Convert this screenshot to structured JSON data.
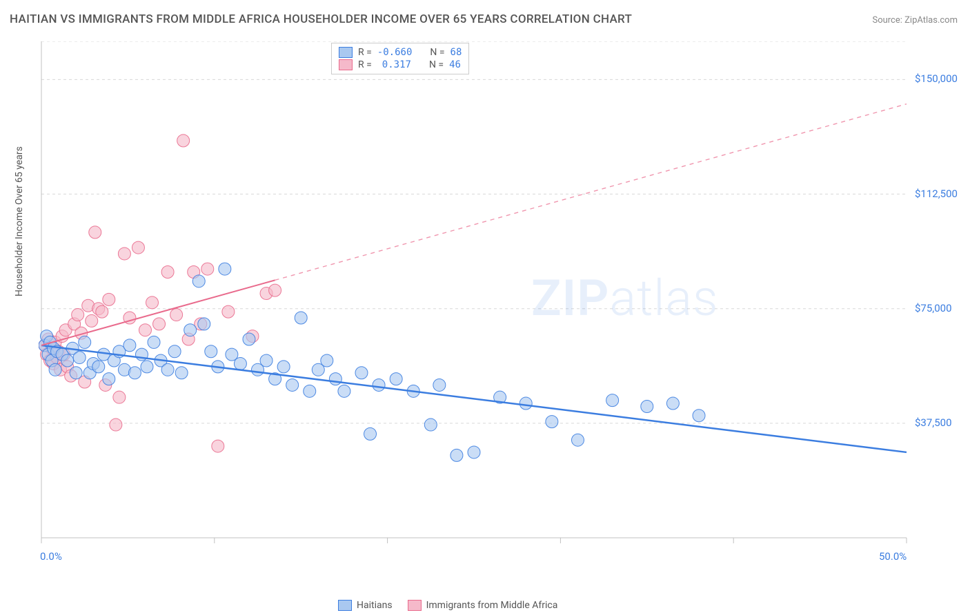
{
  "title": "HAITIAN VS IMMIGRANTS FROM MIDDLE AFRICA HOUSEHOLDER INCOME OVER 65 YEARS CORRELATION CHART",
  "source": "Source: ZipAtlas.com",
  "watermark_zip": "ZIP",
  "watermark_atlas": "atlas",
  "chart": {
    "type": "scatter",
    "background_color": "#ffffff",
    "grid_color": "#d8d8d8",
    "axis_color": "#c0c0c0",
    "y_label": "Householder Income Over 65 years",
    "label_fontsize": 14,
    "label_color": "#555555",
    "tick_color": "#3b7de0",
    "tick_fontsize": 15,
    "xlim": [
      0,
      50
    ],
    "ylim": [
      0,
      162500
    ],
    "x_ticks": [
      0,
      10,
      20,
      30,
      40,
      50
    ],
    "x_tick_labels": [
      "0.0%",
      "",
      "",
      "",
      "",
      "50.0%"
    ],
    "y_ticks": [
      37500,
      75000,
      112500,
      150000
    ],
    "y_tick_labels": [
      "$37,500",
      "$75,000",
      "$112,500",
      "$150,000"
    ],
    "series": [
      {
        "name": "Haitians",
        "color_fill": "#a9c8f0",
        "color_stroke": "#3b7de0",
        "marker_size": 9,
        "marker_opacity": 0.62,
        "trend": {
          "x1": 0,
          "y1": 63000,
          "x2": 50,
          "y2": 28000,
          "solid_until_x": 50,
          "stroke": "#3b7de0",
          "stroke_width": 2.5
        },
        "R": "-0.660",
        "N": "68",
        "points": [
          [
            0.2,
            63000
          ],
          [
            0.3,
            66000
          ],
          [
            0.4,
            60000
          ],
          [
            0.5,
            64000
          ],
          [
            0.6,
            58000
          ],
          [
            0.7,
            62000
          ],
          [
            0.8,
            55000
          ],
          [
            0.9,
            61000
          ],
          [
            1.2,
            60000
          ],
          [
            1.5,
            58000
          ],
          [
            1.8,
            62000
          ],
          [
            2.0,
            54000
          ],
          [
            2.2,
            59000
          ],
          [
            2.5,
            64000
          ],
          [
            2.8,
            54000
          ],
          [
            3.0,
            57000
          ],
          [
            3.3,
            56000
          ],
          [
            3.6,
            60000
          ],
          [
            3.9,
            52000
          ],
          [
            4.2,
            58000
          ],
          [
            4.5,
            61000
          ],
          [
            4.8,
            55000
          ],
          [
            5.1,
            63000
          ],
          [
            5.4,
            54000
          ],
          [
            5.8,
            60000
          ],
          [
            6.1,
            56000
          ],
          [
            6.5,
            64000
          ],
          [
            6.9,
            58000
          ],
          [
            7.3,
            55000
          ],
          [
            7.7,
            61000
          ],
          [
            8.1,
            54000
          ],
          [
            8.6,
            68000
          ],
          [
            9.1,
            84000
          ],
          [
            9.4,
            70000
          ],
          [
            9.8,
            61000
          ],
          [
            10.2,
            56000
          ],
          [
            10.6,
            88000
          ],
          [
            11.0,
            60000
          ],
          [
            11.5,
            57000
          ],
          [
            12.0,
            65000
          ],
          [
            12.5,
            55000
          ],
          [
            13.0,
            58000
          ],
          [
            13.5,
            52000
          ],
          [
            14.0,
            56000
          ],
          [
            14.5,
            50000
          ],
          [
            15.0,
            72000
          ],
          [
            15.5,
            48000
          ],
          [
            16.0,
            55000
          ],
          [
            16.5,
            58000
          ],
          [
            17.0,
            52000
          ],
          [
            17.5,
            48000
          ],
          [
            18.5,
            54000
          ],
          [
            19.0,
            34000
          ],
          [
            19.5,
            50000
          ],
          [
            20.5,
            52000
          ],
          [
            21.5,
            48000
          ],
          [
            22.5,
            37000
          ],
          [
            23.0,
            50000
          ],
          [
            24.0,
            27000
          ],
          [
            25.0,
            28000
          ],
          [
            26.5,
            46000
          ],
          [
            28.0,
            44000
          ],
          [
            29.5,
            38000
          ],
          [
            31.0,
            32000
          ],
          [
            33.0,
            45000
          ],
          [
            35.0,
            43000
          ],
          [
            36.5,
            44000
          ],
          [
            38.0,
            40000
          ]
        ]
      },
      {
        "name": "Immigrants from Middle Africa",
        "color_fill": "#f5b9ca",
        "color_stroke": "#e96a8c",
        "marker_size": 9,
        "marker_opacity": 0.62,
        "trend": {
          "x1": 0,
          "y1": 63000,
          "x2": 50,
          "y2": 142000,
          "solid_until_x": 13.5,
          "stroke": "#e96a8c",
          "stroke_width": 2
        },
        "R": "0.317",
        "N": "46",
        "points": [
          [
            0.2,
            63000
          ],
          [
            0.3,
            60000
          ],
          [
            0.4,
            65000
          ],
          [
            0.5,
            58000
          ],
          [
            0.6,
            62000
          ],
          [
            0.7,
            57000
          ],
          [
            0.8,
            64000
          ],
          [
            0.9,
            59000
          ],
          [
            1.0,
            61000
          ],
          [
            1.1,
            55000
          ],
          [
            1.2,
            66000
          ],
          [
            1.3,
            60000
          ],
          [
            1.4,
            68000
          ],
          [
            1.5,
            56000
          ],
          [
            1.7,
            53000
          ],
          [
            1.9,
            70000
          ],
          [
            2.1,
            73000
          ],
          [
            2.3,
            67000
          ],
          [
            2.5,
            51000
          ],
          [
            2.7,
            76000
          ],
          [
            2.9,
            71000
          ],
          [
            3.1,
            100000
          ],
          [
            3.3,
            75000
          ],
          [
            3.5,
            74000
          ],
          [
            3.7,
            50000
          ],
          [
            3.9,
            78000
          ],
          [
            4.3,
            37000
          ],
          [
            4.5,
            46000
          ],
          [
            4.8,
            93000
          ],
          [
            5.1,
            72000
          ],
          [
            5.6,
            95000
          ],
          [
            6.0,
            68000
          ],
          [
            6.4,
            77000
          ],
          [
            6.8,
            70000
          ],
          [
            7.3,
            87000
          ],
          [
            7.8,
            73000
          ],
          [
            8.2,
            130000
          ],
          [
            8.5,
            65000
          ],
          [
            8.8,
            87000
          ],
          [
            9.2,
            70000
          ],
          [
            9.6,
            88000
          ],
          [
            10.2,
            30000
          ],
          [
            10.8,
            74000
          ],
          [
            12.2,
            66000
          ],
          [
            13.0,
            80000
          ],
          [
            13.5,
            81000
          ]
        ]
      }
    ]
  },
  "legend_top": {
    "R_label": "R =",
    "N_label": "N ="
  },
  "legend_bottom": {
    "items": [
      "Haitians",
      "Immigrants from Middle Africa"
    ]
  }
}
